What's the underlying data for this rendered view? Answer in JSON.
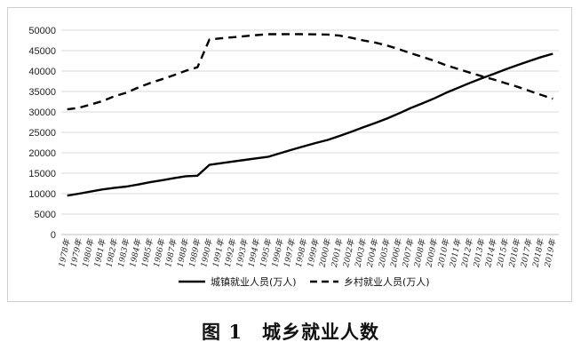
{
  "figure": {
    "caption_number": "图 1",
    "caption_title": "城乡就业人数"
  },
  "chart_data": {
    "type": "line",
    "x": [
      "1978年",
      "1979年",
      "1980年",
      "1981年",
      "1982年",
      "1983年",
      "1984年",
      "1985年",
      "1986年",
      "1987年",
      "1988年",
      "1989年",
      "1990年",
      "1991年",
      "1992年",
      "1993年",
      "1994年",
      "1995年",
      "1996年",
      "1997年",
      "1998年",
      "1999年",
      "2000年",
      "2001年",
      "2002年",
      "2003年",
      "2004年",
      "2005年",
      "2006年",
      "2007年",
      "2008年",
      "2009年",
      "2010年",
      "2011年",
      "2012年",
      "2013年",
      "2014年",
      "2015年",
      "2016年",
      "2017年",
      "2018年",
      "2019年"
    ],
    "series": [
      {
        "name": "城镇就业人员(万人)",
        "style": "solid",
        "color": "#000000",
        "values": [
          9514,
          9999,
          10525,
          11053,
          11428,
          11746,
          12229,
          12808,
          13292,
          13783,
          14267,
          14390,
          17041,
          17465,
          17861,
          18262,
          18653,
          19040,
          19922,
          20781,
          21616,
          22412,
          23151,
          24123,
          25159,
          26230,
          27293,
          28389,
          29630,
          30953,
          32103,
          33322,
          34687,
          35914,
          37102,
          38240,
          39310,
          40410,
          41428,
          42462,
          43419,
          44247
        ]
      },
      {
        "name": "乡村就业人员(万人)",
        "style": "dashed",
        "color": "#000000",
        "values": [
          30638,
          31025,
          31836,
          32672,
          33867,
          34690,
          35968,
          37065,
          37990,
          39000,
          40067,
          40939,
          47708,
          48026,
          48291,
          48546,
          48802,
          49025,
          49028,
          49039,
          49021,
          48982,
          48934,
          48674,
          48121,
          47506,
          46971,
          46258,
          45348,
          44368,
          43461,
          42506,
          41418,
          40506,
          39602,
          38737,
          37943,
          37041,
          36175,
          35178,
          34167,
          33224
        ]
      }
    ],
    "ylim": [
      0,
      50000
    ],
    "yticks": [
      "0",
      "5000",
      "10000",
      "15000",
      "20000",
      "25000",
      "30000",
      "35000",
      "40000",
      "45000",
      "50000"
    ],
    "grid": true,
    "legend_position": "bottom"
  },
  "colors": {
    "grid": "#d9d9d9",
    "axis": "#bfbfbf",
    "line": "#000000",
    "frame": "#cfcfcf"
  }
}
